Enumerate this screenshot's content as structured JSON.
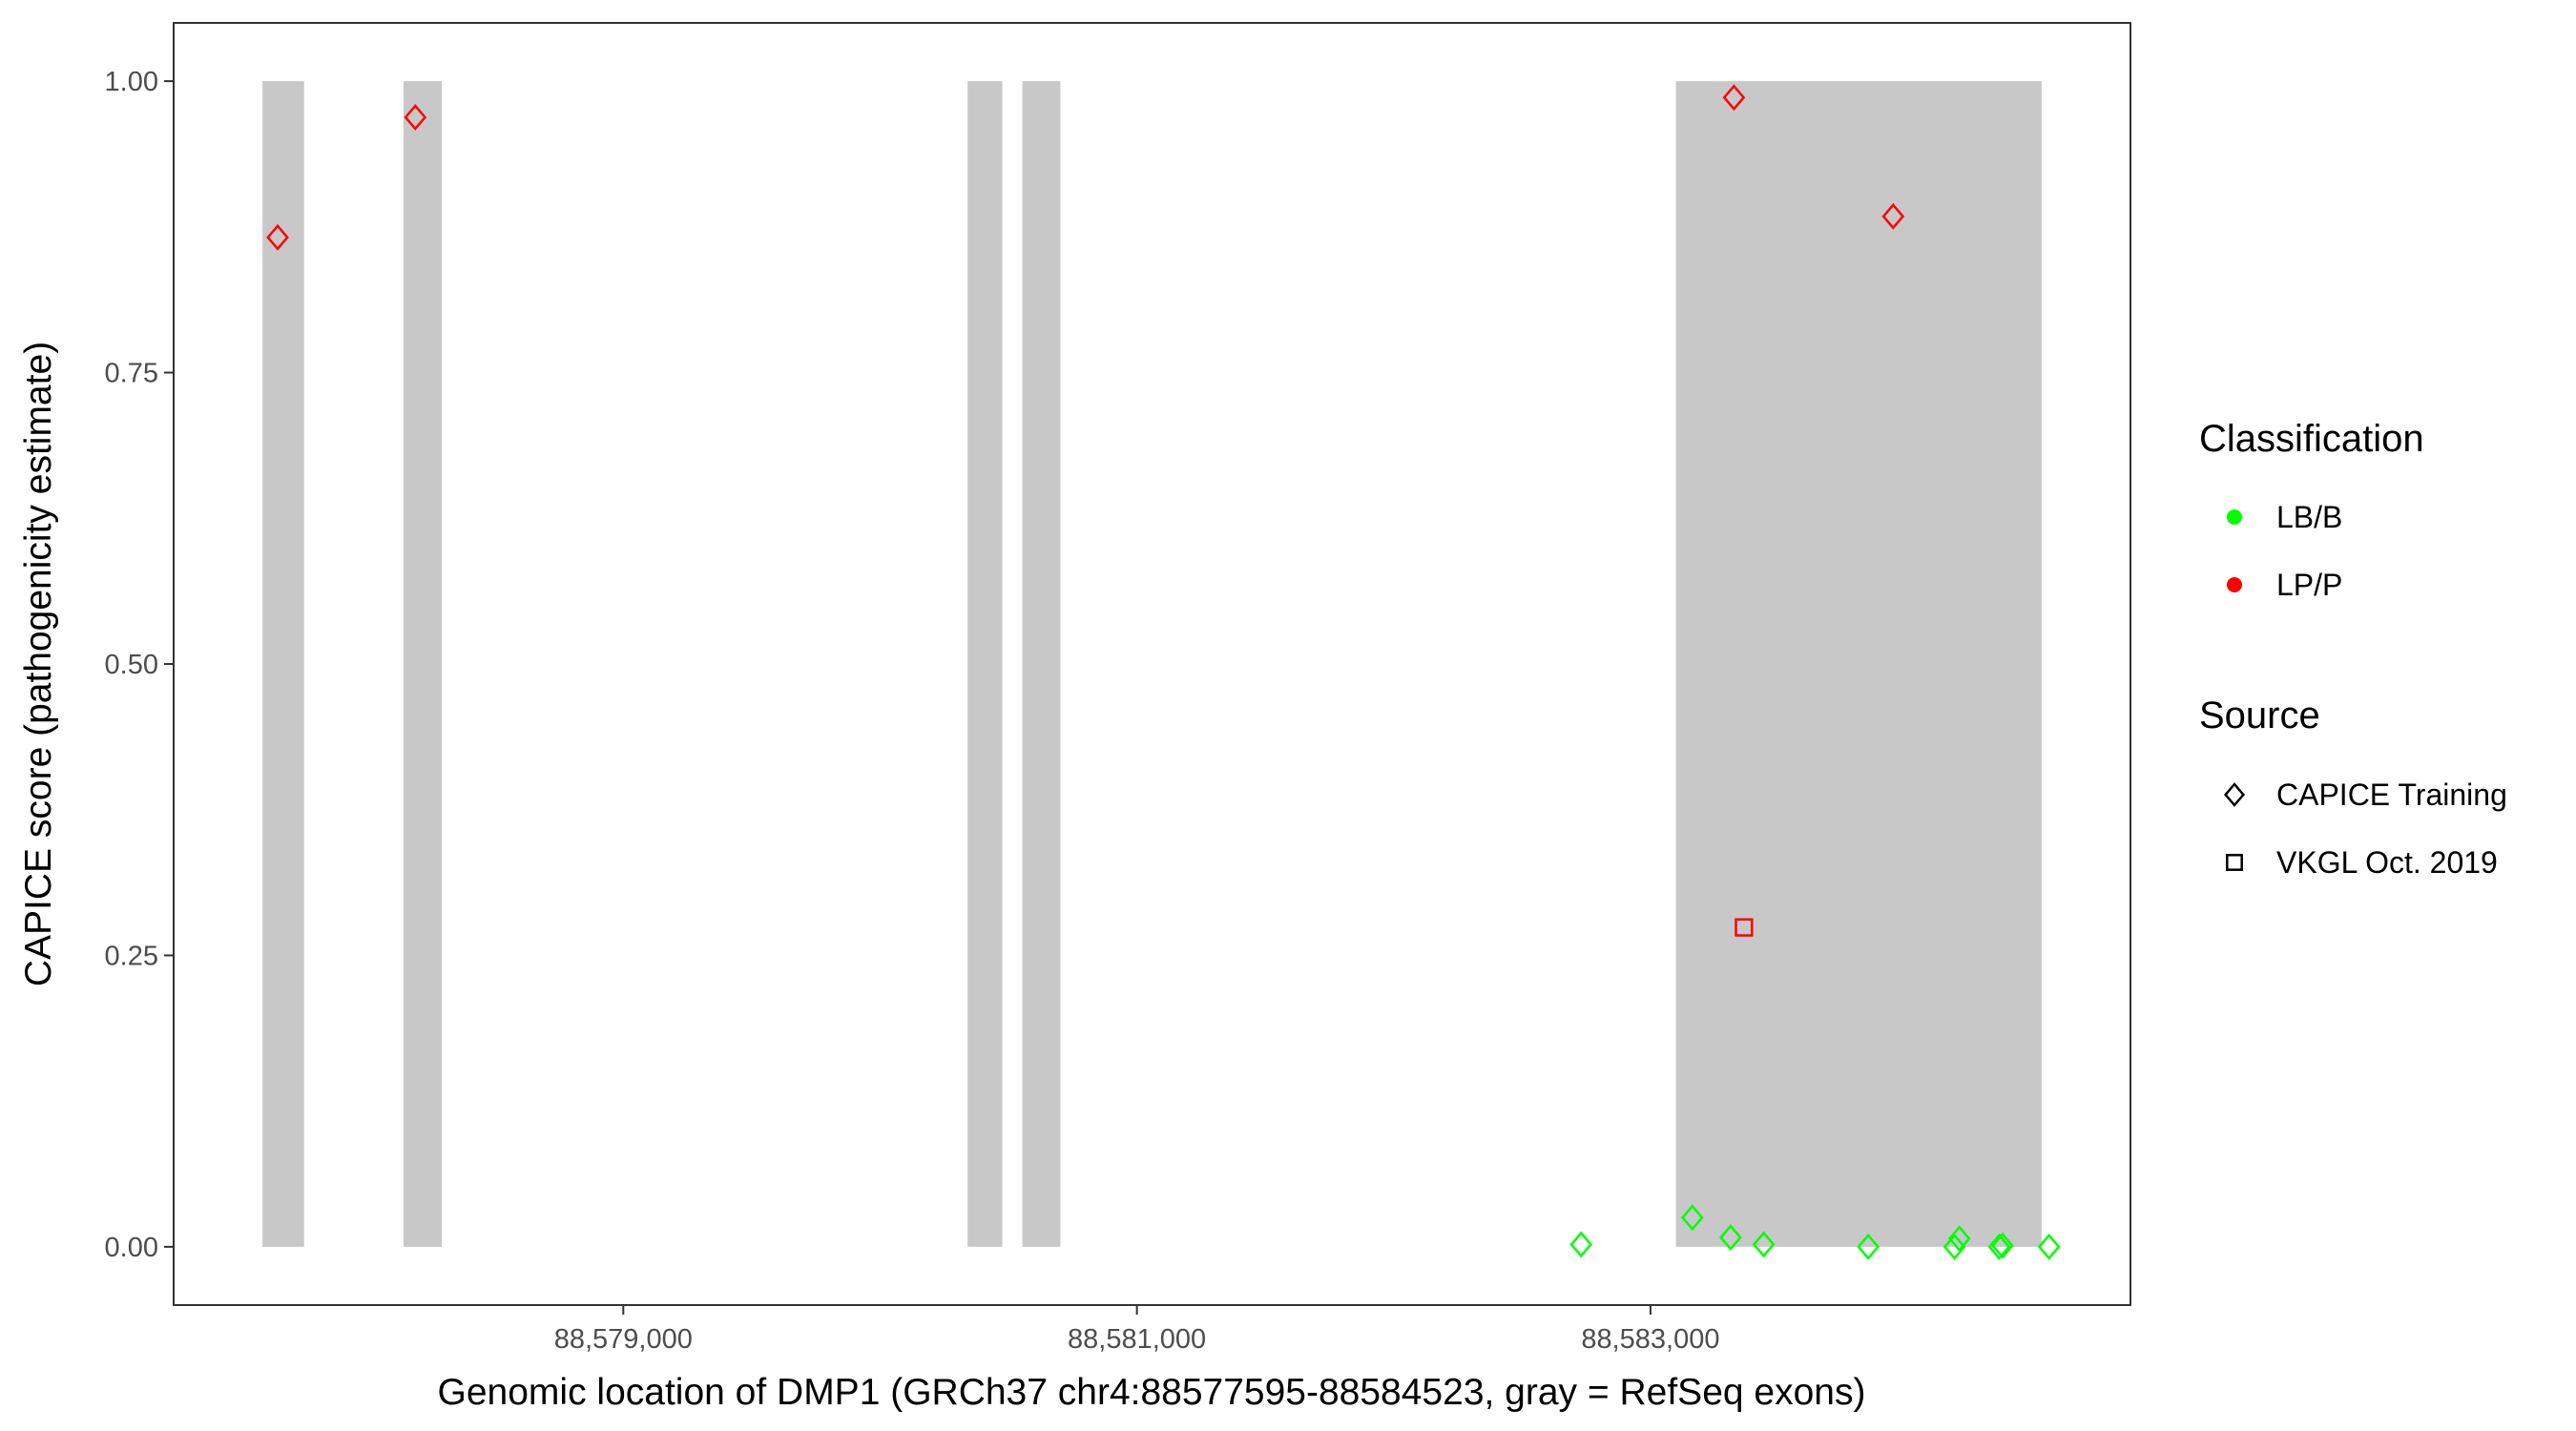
{
  "chart_data": {
    "type": "scatter",
    "xlabel": "Genomic location of DMP1 (GRCh37 chr4:88577595-88584523, gray = RefSeq exons)",
    "ylabel": "CAPICE score (pathogenicity estimate)",
    "xlim": [
      88577249,
      88584869
    ],
    "ylim": [
      -0.05,
      1.05
    ],
    "x_ticks": [
      88579000,
      88581000,
      88583000
    ],
    "x_tick_labels": [
      "88,579,000",
      "88,581,000",
      "88,583,000"
    ],
    "y_ticks": [
      0,
      0.25,
      0.5,
      0.75,
      1.0
    ],
    "y_tick_labels": [
      "0.00",
      "0.25",
      "0.50",
      "0.75",
      "1.00"
    ],
    "grid": false,
    "exons": [
      [
        88577595,
        88577757
      ],
      [
        88578144,
        88578293
      ],
      [
        88580341,
        88580476
      ],
      [
        88580554,
        88580702
      ],
      [
        88583099,
        88584523
      ]
    ],
    "exon_color": "#c8c8c8",
    "legend_placement": "right",
    "legends": [
      {
        "title": "Classification",
        "entries": [
          {
            "label": "LB/B",
            "color": "#00ff00"
          },
          {
            "label": "LP/P",
            "color": "#ff0000"
          }
        ]
      },
      {
        "title": "Source",
        "entries": [
          {
            "label": "CAPICE Training",
            "shape": "diamond"
          },
          {
            "label": "VKGL Oct. 2019",
            "shape": "square"
          }
        ]
      }
    ],
    "points": [
      {
        "x": 88577654,
        "y": 0.866,
        "class": "LP/P",
        "source": "CAPICE Training"
      },
      {
        "x": 88578190,
        "y": 0.969,
        "class": "LP/P",
        "source": "CAPICE Training"
      },
      {
        "x": 88583325,
        "y": 0.986,
        "class": "LP/P",
        "source": "CAPICE Training"
      },
      {
        "x": 88583945,
        "y": 0.884,
        "class": "LP/P",
        "source": "CAPICE Training"
      },
      {
        "x": 88583364,
        "y": 0.274,
        "class": "LP/P",
        "source": "VKGL Oct. 2019"
      },
      {
        "x": 88582730,
        "y": 0.002,
        "class": "LB/B",
        "source": "CAPICE Training"
      },
      {
        "x": 88583163,
        "y": 0.025,
        "class": "LB/B",
        "source": "CAPICE Training"
      },
      {
        "x": 88583312,
        "y": 0.008,
        "class": "LB/B",
        "source": "CAPICE Training"
      },
      {
        "x": 88583441,
        "y": 0.002,
        "class": "LB/B",
        "source": "CAPICE Training"
      },
      {
        "x": 88583848,
        "y": 0.0,
        "class": "LB/B",
        "source": "CAPICE Training"
      },
      {
        "x": 88584184,
        "y": 0.0,
        "class": "LB/B",
        "source": "CAPICE Training"
      },
      {
        "x": 88584203,
        "y": 0.007,
        "class": "LB/B",
        "source": "CAPICE Training"
      },
      {
        "x": 88584358,
        "y": 0.0,
        "class": "LB/B",
        "source": "CAPICE Training"
      },
      {
        "x": 88584371,
        "y": 0.001,
        "class": "LB/B",
        "source": "CAPICE Training"
      },
      {
        "x": 88584552,
        "y": 0.0,
        "class": "LB/B",
        "source": "CAPICE Training"
      }
    ]
  }
}
